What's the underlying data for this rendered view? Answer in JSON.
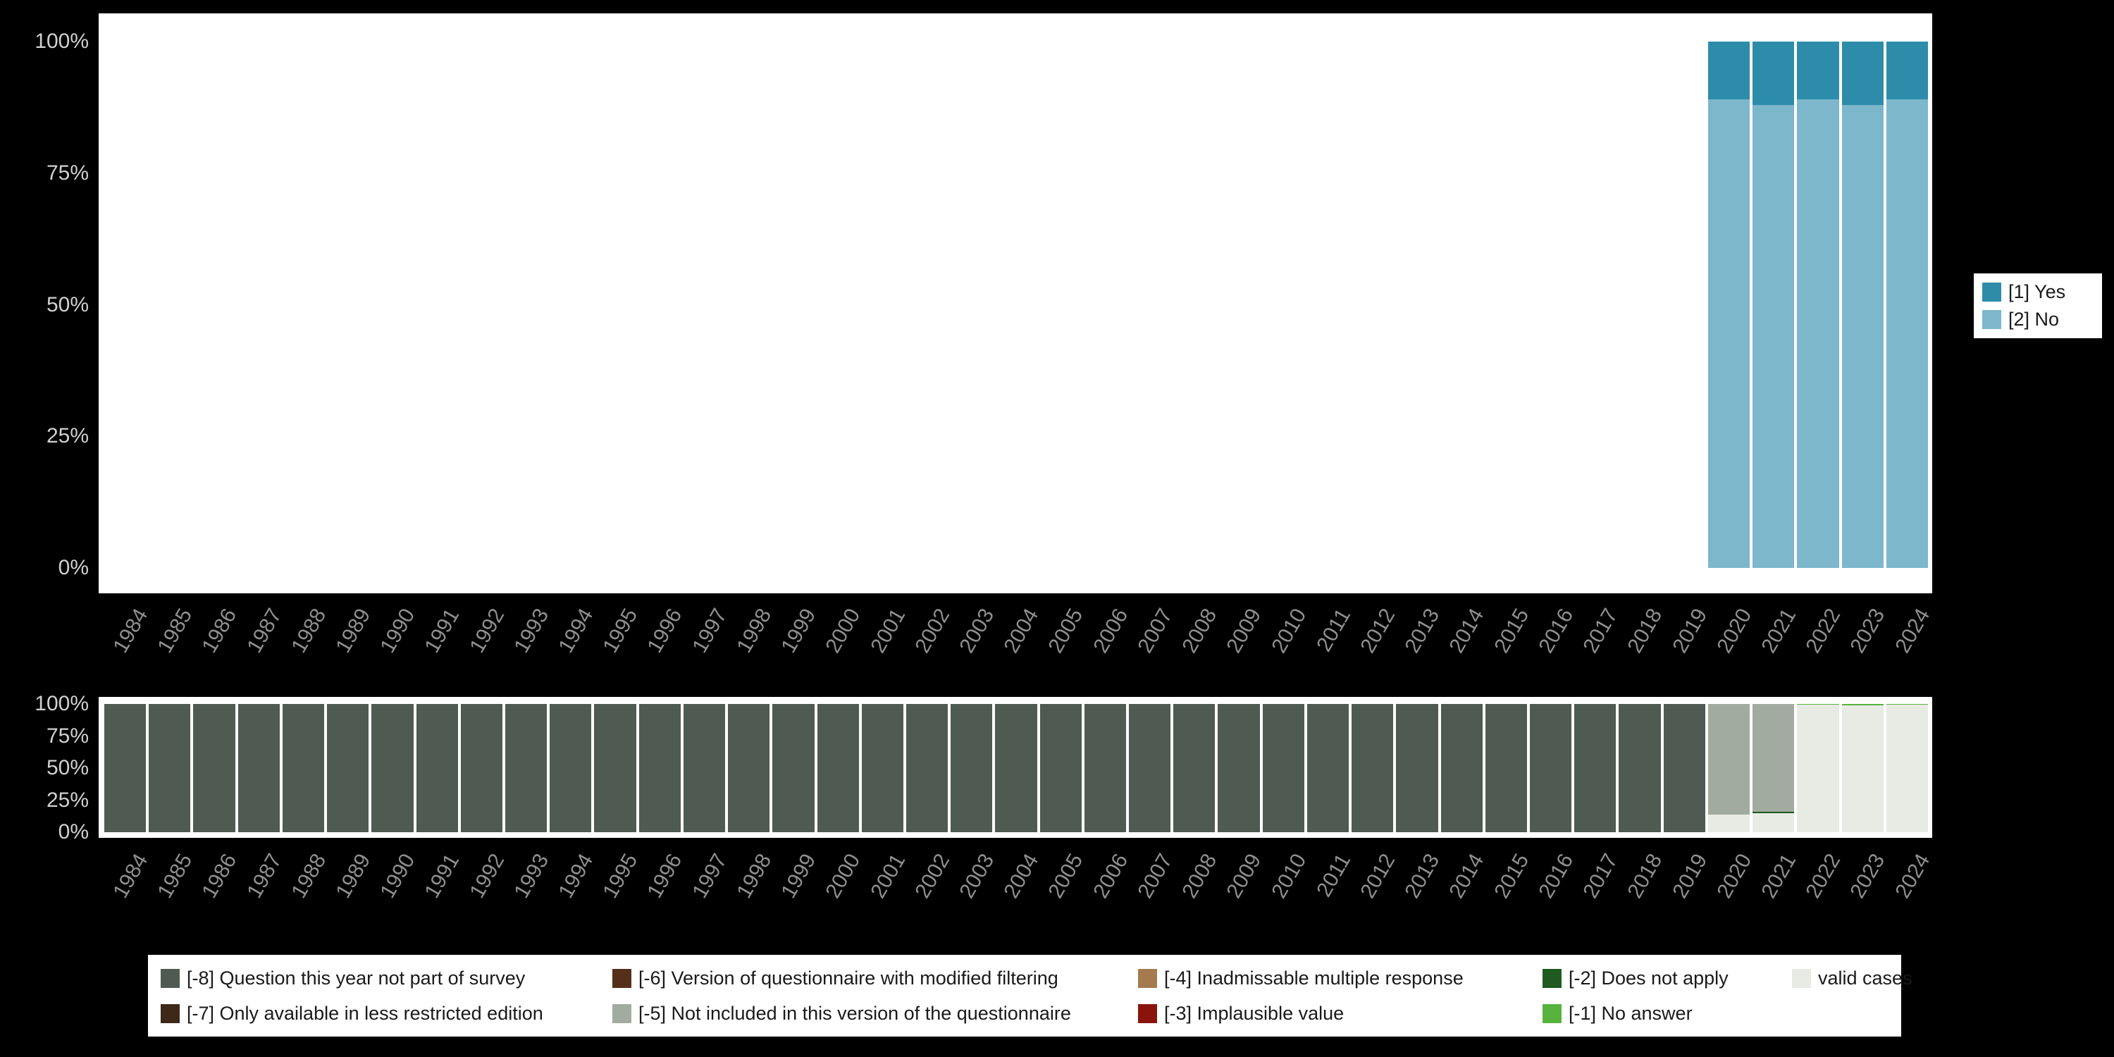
{
  "page": {
    "background": "#000000",
    "panel_background": "#ffffff"
  },
  "axes": {
    "y_tick_labels": [
      "100%",
      "75%",
      "50%",
      "25%",
      "0%"
    ],
    "y_tick_color": "#d0d0d0",
    "x_tick_color": "#8f8f8f"
  },
  "chart_data": [
    {
      "id": "responses",
      "type": "bar",
      "stacked": true,
      "stack_order": "top-to-bottom",
      "title": "",
      "xlabel": "",
      "ylabel": "",
      "ylim": [
        0,
        100
      ],
      "unit": "%",
      "grid": false,
      "legend_position": "right",
      "categories": [
        "1984",
        "1985",
        "1986",
        "1987",
        "1988",
        "1989",
        "1990",
        "1991",
        "1992",
        "1993",
        "1994",
        "1995",
        "1996",
        "1997",
        "1998",
        "1999",
        "2000",
        "2001",
        "2002",
        "2003",
        "2004",
        "2005",
        "2006",
        "2007",
        "2008",
        "2009",
        "2010",
        "2011",
        "2012",
        "2013",
        "2014",
        "2015",
        "2016",
        "2017",
        "2018",
        "2019",
        "2020",
        "2021",
        "2022",
        "2023",
        "2024"
      ],
      "series": [
        {
          "name": "[1] Yes",
          "color": "#2e8cab",
          "values": [
            0,
            0,
            0,
            0,
            0,
            0,
            0,
            0,
            0,
            0,
            0,
            0,
            0,
            0,
            0,
            0,
            0,
            0,
            0,
            0,
            0,
            0,
            0,
            0,
            0,
            0,
            0,
            0,
            0,
            0,
            0,
            0,
            0,
            0,
            0,
            0,
            11,
            12,
            11,
            12,
            11
          ]
        },
        {
          "name": "[2] No",
          "color": "#7cb7cb",
          "values": [
            0,
            0,
            0,
            0,
            0,
            0,
            0,
            0,
            0,
            0,
            0,
            0,
            0,
            0,
            0,
            0,
            0,
            0,
            0,
            0,
            0,
            0,
            0,
            0,
            0,
            0,
            0,
            0,
            0,
            0,
            0,
            0,
            0,
            0,
            0,
            0,
            89,
            88,
            89,
            88,
            89
          ]
        }
      ]
    },
    {
      "id": "missing-values",
      "type": "bar",
      "stacked": true,
      "stack_order": "top-to-bottom",
      "title": "",
      "xlabel": "",
      "ylabel": "",
      "ylim": [
        0,
        100
      ],
      "unit": "%",
      "grid": false,
      "legend_position": "bottom",
      "categories": [
        "1984",
        "1985",
        "1986",
        "1987",
        "1988",
        "1989",
        "1990",
        "1991",
        "1992",
        "1993",
        "1994",
        "1995",
        "1996",
        "1997",
        "1998",
        "1999",
        "2000",
        "2001",
        "2002",
        "2003",
        "2004",
        "2005",
        "2006",
        "2007",
        "2008",
        "2009",
        "2010",
        "2011",
        "2012",
        "2013",
        "2014",
        "2015",
        "2016",
        "2017",
        "2018",
        "2019",
        "2020",
        "2021",
        "2022",
        "2023",
        "2024"
      ],
      "series": [
        {
          "name": "[-8] Question this year not part of survey",
          "color": "#4f5b52",
          "values": [
            100,
            100,
            100,
            100,
            100,
            100,
            100,
            100,
            100,
            100,
            100,
            100,
            100,
            100,
            100,
            100,
            100,
            100,
            100,
            100,
            100,
            100,
            100,
            100,
            100,
            100,
            100,
            100,
            100,
            100,
            100,
            100,
            100,
            100,
            100,
            100,
            0,
            0,
            0,
            0,
            0
          ]
        },
        {
          "name": "[-7] Only available in less restricted edition",
          "color": "#3e2817",
          "values": [
            0,
            0,
            0,
            0,
            0,
            0,
            0,
            0,
            0,
            0,
            0,
            0,
            0,
            0,
            0,
            0,
            0,
            0,
            0,
            0,
            0,
            0,
            0,
            0,
            0,
            0,
            0,
            0,
            0,
            0,
            0,
            0,
            0,
            0,
            0,
            0,
            0,
            0,
            0,
            0,
            0
          ]
        },
        {
          "name": "[-6] Version of questionnaire with modified filtering",
          "color": "#54301a",
          "values": [
            0,
            0,
            0,
            0,
            0,
            0,
            0,
            0,
            0,
            0,
            0,
            0,
            0,
            0,
            0,
            0,
            0,
            0,
            0,
            0,
            0,
            0,
            0,
            0,
            0,
            0,
            0,
            0,
            0,
            0,
            0,
            0,
            0,
            0,
            0,
            0,
            0,
            0,
            0,
            0,
            0
          ]
        },
        {
          "name": "[-5] Not included in this version of the questionnaire",
          "color": "#a2ab9f",
          "values": [
            0,
            0,
            0,
            0,
            0,
            0,
            0,
            0,
            0,
            0,
            0,
            0,
            0,
            0,
            0,
            0,
            0,
            0,
            0,
            0,
            0,
            0,
            0,
            0,
            0,
            0,
            0,
            0,
            0,
            0,
            0,
            0,
            0,
            0,
            0,
            0,
            86,
            84,
            0,
            0,
            0
          ]
        },
        {
          "name": "[-4] Inadmissable multiple response",
          "color": "#a57a4e",
          "values": [
            0,
            0,
            0,
            0,
            0,
            0,
            0,
            0,
            0,
            0,
            0,
            0,
            0,
            0,
            0,
            0,
            0,
            0,
            0,
            0,
            0,
            0,
            0,
            0,
            0,
            0,
            0,
            0,
            0,
            0,
            0,
            0,
            0,
            0,
            0,
            0,
            0,
            0,
            0,
            0,
            0
          ]
        },
        {
          "name": "[-3] Implausible value",
          "color": "#8a140b",
          "values": [
            0,
            0,
            0,
            0,
            0,
            0,
            0,
            0,
            0,
            0,
            0,
            0,
            0,
            0,
            0,
            0,
            0,
            0,
            0,
            0,
            0,
            0,
            0,
            0,
            0,
            0,
            0,
            0,
            0,
            0,
            0,
            0,
            0,
            0,
            0,
            0,
            0,
            0,
            0,
            0,
            0
          ]
        },
        {
          "name": "[-2] Does not apply",
          "color": "#1f5a20",
          "values": [
            0,
            0,
            0,
            0,
            0,
            0,
            0,
            0,
            0,
            0,
            0,
            0,
            0,
            0,
            0,
            0,
            0,
            0,
            0,
            0,
            0,
            0,
            0,
            0,
            0,
            0,
            0,
            0,
            0,
            0,
            0,
            0,
            0,
            0,
            0,
            0,
            0,
            1,
            0,
            0,
            0
          ]
        },
        {
          "name": "[-1] No answer",
          "color": "#57b33e",
          "values": [
            0,
            0,
            0,
            0,
            0,
            0,
            0,
            0,
            0,
            0,
            0,
            0,
            0,
            0,
            0,
            0,
            0,
            0,
            0,
            0,
            0,
            0,
            0,
            0,
            0,
            0,
            0,
            0,
            0,
            0,
            0,
            0,
            0,
            0,
            0,
            0,
            0,
            0,
            0.5,
            1,
            0.5
          ]
        },
        {
          "name": "valid cases",
          "color": "#e8ebe4",
          "values": [
            0,
            0,
            0,
            0,
            0,
            0,
            0,
            0,
            0,
            0,
            0,
            0,
            0,
            0,
            0,
            0,
            0,
            0,
            0,
            0,
            0,
            0,
            0,
            0,
            0,
            0,
            0,
            0,
            0,
            0,
            0,
            0,
            0,
            0,
            0,
            0,
            14,
            15,
            99.5,
            99,
            99.5
          ]
        }
      ]
    }
  ]
}
